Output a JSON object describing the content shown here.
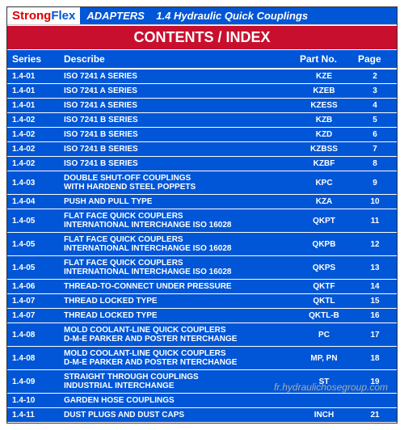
{
  "brand": {
    "part1": "Strong",
    "part2": "Flex"
  },
  "header_suffix": "ADAPTERS",
  "section_code": "1.4 Hydraulic Quick Couplings",
  "title": "CONTENTS / INDEX",
  "columns": {
    "c1": "Series",
    "c2": "Describe",
    "c3": "Part No.",
    "c4": "Page"
  },
  "rows": [
    {
      "series": "1.4-01",
      "desc": "ISO 7241 A SERIES",
      "part": "KZE",
      "page": "2"
    },
    {
      "series": "1.4-01",
      "desc": "ISO 7241 A SERIES",
      "part": "KZEB",
      "page": "3"
    },
    {
      "series": "1.4-01",
      "desc": "ISO 7241 A SERIES",
      "part": "KZESS",
      "page": "4"
    },
    {
      "series": "1.4-02",
      "desc": "ISO 7241 B SERIES",
      "part": "KZB",
      "page": "5"
    },
    {
      "series": "1.4-02",
      "desc": "ISO 7241 B SERIES",
      "part": "KZD",
      "page": "6"
    },
    {
      "series": "1.4-02",
      "desc": "ISO 7241 B SERIES",
      "part": "KZBSS",
      "page": "7"
    },
    {
      "series": "1.4-02",
      "desc": "ISO 7241 B SERIES",
      "part": "KZBF",
      "page": "8"
    },
    {
      "series": "1.4-03",
      "desc": "DOUBLE SHUT-OFF COUPLINGS\nWITH HARDEND STEEL POPPETS",
      "part": "KPC",
      "page": "9"
    },
    {
      "series": "1.4-04",
      "desc": "PUSH AND PULL TYPE",
      "part": "KZA",
      "page": "10"
    },
    {
      "series": "1.4-05",
      "desc": "FLAT FACE QUICK COUPLERS\nINTERNATIONAL INTERCHANGE ISO 16028",
      "part": "QKPT",
      "page": "11"
    },
    {
      "series": "1.4-05",
      "desc": "FLAT FACE QUICK COUPLERS\nINTERNATIONAL INTERCHANGE ISO 16028",
      "part": "QKPB",
      "page": "12"
    },
    {
      "series": "1.4-05",
      "desc": "FLAT FACE QUICK COUPLERS\nINTERNATIONAL INTERCHANGE ISO 16028",
      "part": "QKPS",
      "page": "13"
    },
    {
      "series": "1.4-06",
      "desc": "THREAD-TO-CONNECT UNDER PRESSURE",
      "part": "QKTF",
      "page": "14"
    },
    {
      "series": "1.4-07",
      "desc": "THREAD LOCKED TYPE",
      "part": "QKTL",
      "page": "15"
    },
    {
      "series": "1.4-07",
      "desc": "THREAD LOCKED TYPE",
      "part": "QKTL-B",
      "page": "16"
    },
    {
      "series": "1.4-08",
      "desc": "MOLD COOLANT-LINE QUICK COUPLERS\nD-M-E PARKER AND POSTER NTERCHANGE",
      "part": "PC",
      "page": "17"
    },
    {
      "series": "1.4-08",
      "desc": "MOLD COOLANT-LINE QUICK COUPLERS\nD-M-E PARKER AND POSTER NTERCHANGE",
      "part": "MP, PN",
      "page": "18"
    },
    {
      "series": "1.4-09",
      "desc": "STRAIGHT THROUGH COUPLINGS\nINDUSTRIAL INTERCHANGE",
      "part": "ST",
      "page": "19"
    },
    {
      "series": "1.4-10",
      "desc": "GARDEN HOSE COUPLINGS",
      "part": "",
      "page": ""
    },
    {
      "series": "1.4-11",
      "desc": "DUST PLUGS AND DUST CAPS",
      "part": "INCH",
      "page": "21"
    }
  ],
  "watermark": "fr.hydraulichosegroup.com",
  "colors": {
    "header_blue": "#0056d6",
    "title_red": "#c8102e",
    "brand_red": "#d00000",
    "white": "#ffffff"
  }
}
